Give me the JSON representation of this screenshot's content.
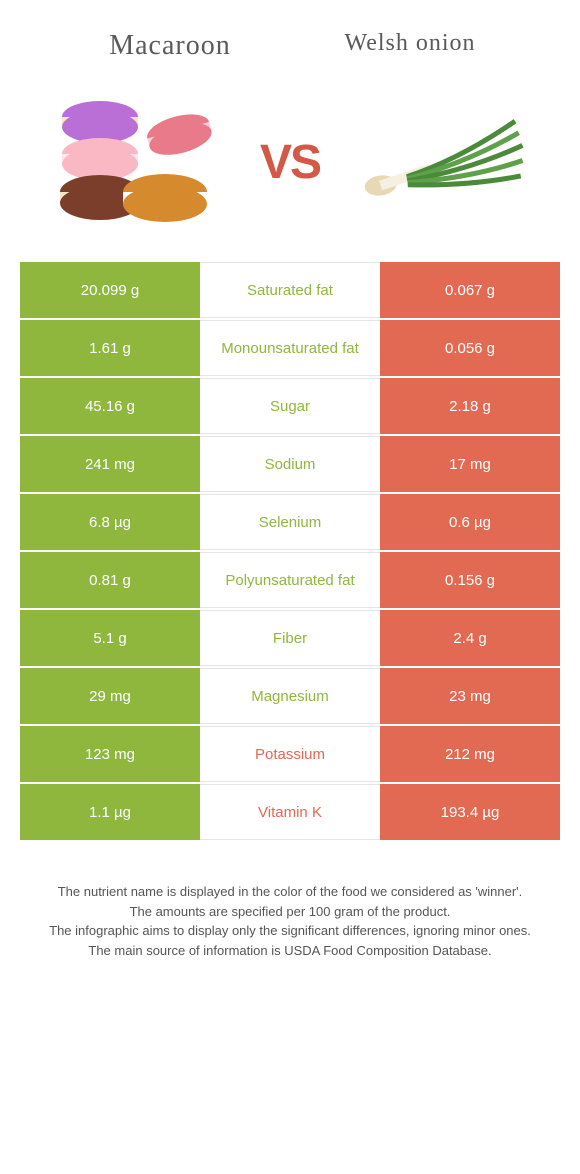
{
  "header": {
    "left_title": "Macaroon",
    "right_title": "Welsh onion",
    "vs": "VS"
  },
  "colors": {
    "left_bg": "#8fb73e",
    "right_bg": "#e26a52",
    "left_text": "#8fb73e",
    "right_text": "#e26a52"
  },
  "rows": [
    {
      "left": "20.099 g",
      "label": "Saturated fat",
      "right": "0.067 g",
      "winner": "left"
    },
    {
      "left": "1.61 g",
      "label": "Monounsaturated fat",
      "right": "0.056 g",
      "winner": "left"
    },
    {
      "left": "45.16 g",
      "label": "Sugar",
      "right": "2.18 g",
      "winner": "left"
    },
    {
      "left": "241 mg",
      "label": "Sodium",
      "right": "17 mg",
      "winner": "left"
    },
    {
      "left": "6.8 µg",
      "label": "Selenium",
      "right": "0.6 µg",
      "winner": "left"
    },
    {
      "left": "0.81 g",
      "label": "Polyunsaturated fat",
      "right": "0.156 g",
      "winner": "left"
    },
    {
      "left": "5.1 g",
      "label": "Fiber",
      "right": "2.4 g",
      "winner": "left"
    },
    {
      "left": "29 mg",
      "label": "Magnesium",
      "right": "23 mg",
      "winner": "left"
    },
    {
      "left": "123 mg",
      "label": "Potassium",
      "right": "212 mg",
      "winner": "right"
    },
    {
      "left": "1.1 µg",
      "label": "Vitamin K",
      "right": "193.4 µg",
      "winner": "right"
    }
  ],
  "footnotes": {
    "l1": "The nutrient name is displayed in the color of the food we considered as 'winner'.",
    "l2": "The amounts are specified per 100 gram of the product.",
    "l3": "The infographic aims to display only the significant differences, ignoring minor ones.",
    "l4": "The main source of information is USDA Food Composition Database."
  }
}
